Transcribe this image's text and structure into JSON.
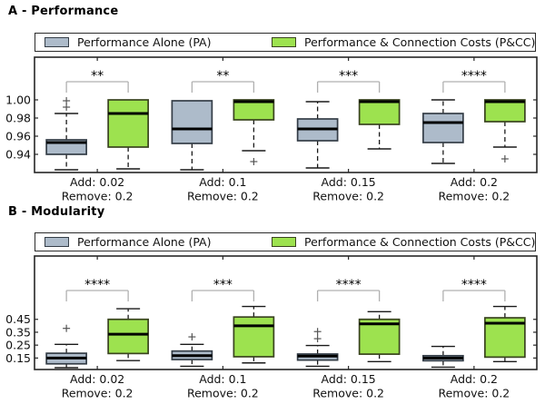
{
  "legend": {
    "pa_label": "Performance Alone (PA)",
    "pcc_label": "Performance & Connection Costs (P&CC)"
  },
  "colors": {
    "pa_fill": "#adbbca",
    "pa_edge": "#343d47",
    "pcc_fill": "#9de24f",
    "pcc_edge": "#3a441f",
    "median": "#000000",
    "whisker": "#1a1a1a",
    "flier": "#555555",
    "bracket": "#b0b0b0",
    "axis": "#262626",
    "text": "#111111"
  },
  "chart_data": [
    {
      "type": "boxplot",
      "title": "A - Performance",
      "ylim": [
        0.92,
        1.048
      ],
      "yticks": [
        {
          "label": "1.00",
          "value": 1.0
        },
        {
          "label": "0.98",
          "value": 0.98
        },
        {
          "label": "0.96",
          "value": 0.96
        },
        {
          "label": "0.94",
          "value": 0.94
        }
      ],
      "series_names": [
        "PA",
        "P&CC"
      ],
      "groups": [
        {
          "xlabel": [
            "Add: 0.02",
            "Remove: 0.2"
          ],
          "significance": "**",
          "pa": {
            "whislo": 0.923,
            "q1": 0.94,
            "med": 0.953,
            "q3": 0.956,
            "whishi": 0.985,
            "fliers": [
              0.992,
              0.999
            ]
          },
          "pcc": {
            "whislo": 0.924,
            "q1": 0.948,
            "med": 0.985,
            "q3": 1.0,
            "whishi": null,
            "fliers": []
          }
        },
        {
          "xlabel": [
            "Add: 0.1",
            "Remove: 0.2"
          ],
          "significance": "**",
          "pa": {
            "whislo": 0.923,
            "q1": 0.952,
            "med": 0.968,
            "q3": 0.999,
            "whishi": null,
            "fliers": []
          },
          "pcc": {
            "whislo": 0.944,
            "q1": 0.978,
            "med": 0.998,
            "q3": 1.0,
            "whishi": null,
            "fliers": [
              0.932
            ]
          }
        },
        {
          "xlabel": [
            "Add: 0.15",
            "Remove: 0.2"
          ],
          "significance": "***",
          "pa": {
            "whislo": 0.925,
            "q1": 0.955,
            "med": 0.968,
            "q3": 0.979,
            "whishi": 0.998,
            "fliers": []
          },
          "pcc": {
            "whislo": 0.946,
            "q1": 0.973,
            "med": 0.998,
            "q3": 1.0,
            "whishi": null,
            "fliers": []
          }
        },
        {
          "xlabel": [
            "Add: 0.2",
            "Remove: 0.2"
          ],
          "significance": "****",
          "pa": {
            "whislo": 0.93,
            "q1": 0.953,
            "med": 0.975,
            "q3": 0.985,
            "whishi": 1.0,
            "fliers": []
          },
          "pcc": {
            "whislo": 0.948,
            "q1": 0.976,
            "med": 0.998,
            "q3": 1.0,
            "whishi": null,
            "fliers": [
              0.935
            ]
          }
        }
      ]
    },
    {
      "type": "boxplot",
      "title": "B - Modularity",
      "ylim": [
        0.061,
        0.948
      ],
      "yticks": [
        {
          "label": "0.45",
          "value": 0.45
        },
        {
          "label": "0.35",
          "value": 0.35
        },
        {
          "label": "0.25",
          "value": 0.25
        },
        {
          "label": "0.15",
          "value": 0.15
        }
      ],
      "series_names": [
        "PA",
        "P&CC"
      ],
      "groups": [
        {
          "xlabel": [
            "Add: 0.02",
            "Remove: 0.2"
          ],
          "significance": "****",
          "pa": {
            "whislo": 0.075,
            "q1": 0.105,
            "med": 0.15,
            "q3": 0.187,
            "whishi": 0.256,
            "fliers": [
              0.38
            ]
          },
          "pcc": {
            "whislo": 0.13,
            "q1": 0.185,
            "med": 0.335,
            "q3": 0.45,
            "whishi": 0.532,
            "fliers": []
          }
        },
        {
          "xlabel": [
            "Add: 0.1",
            "Remove: 0.2"
          ],
          "significance": "***",
          "pa": {
            "whislo": 0.086,
            "q1": 0.138,
            "med": 0.168,
            "q3": 0.204,
            "whishi": 0.256,
            "fliers": [
              0.314
            ]
          },
          "pcc": {
            "whislo": 0.112,
            "q1": 0.16,
            "med": 0.4,
            "q3": 0.468,
            "whishi": 0.55,
            "fliers": []
          }
        },
        {
          "xlabel": [
            "Add: 0.15",
            "Remove: 0.2"
          ],
          "significance": "****",
          "pa": {
            "whislo": 0.086,
            "q1": 0.134,
            "med": 0.165,
            "q3": 0.181,
            "whishi": 0.247,
            "fliers": [
              0.3,
              0.355
            ]
          },
          "pcc": {
            "whislo": 0.122,
            "q1": 0.18,
            "med": 0.415,
            "q3": 0.45,
            "whishi": 0.509,
            "fliers": []
          }
        },
        {
          "xlabel": [
            "Add: 0.2",
            "Remove: 0.2"
          ],
          "significance": "****",
          "pa": {
            "whislo": 0.079,
            "q1": 0.129,
            "med": 0.15,
            "q3": 0.168,
            "whishi": 0.24,
            "fliers": []
          },
          "pcc": {
            "whislo": 0.122,
            "q1": 0.157,
            "med": 0.42,
            "q3": 0.462,
            "whishi": 0.55,
            "fliers": []
          }
        }
      ]
    }
  ]
}
